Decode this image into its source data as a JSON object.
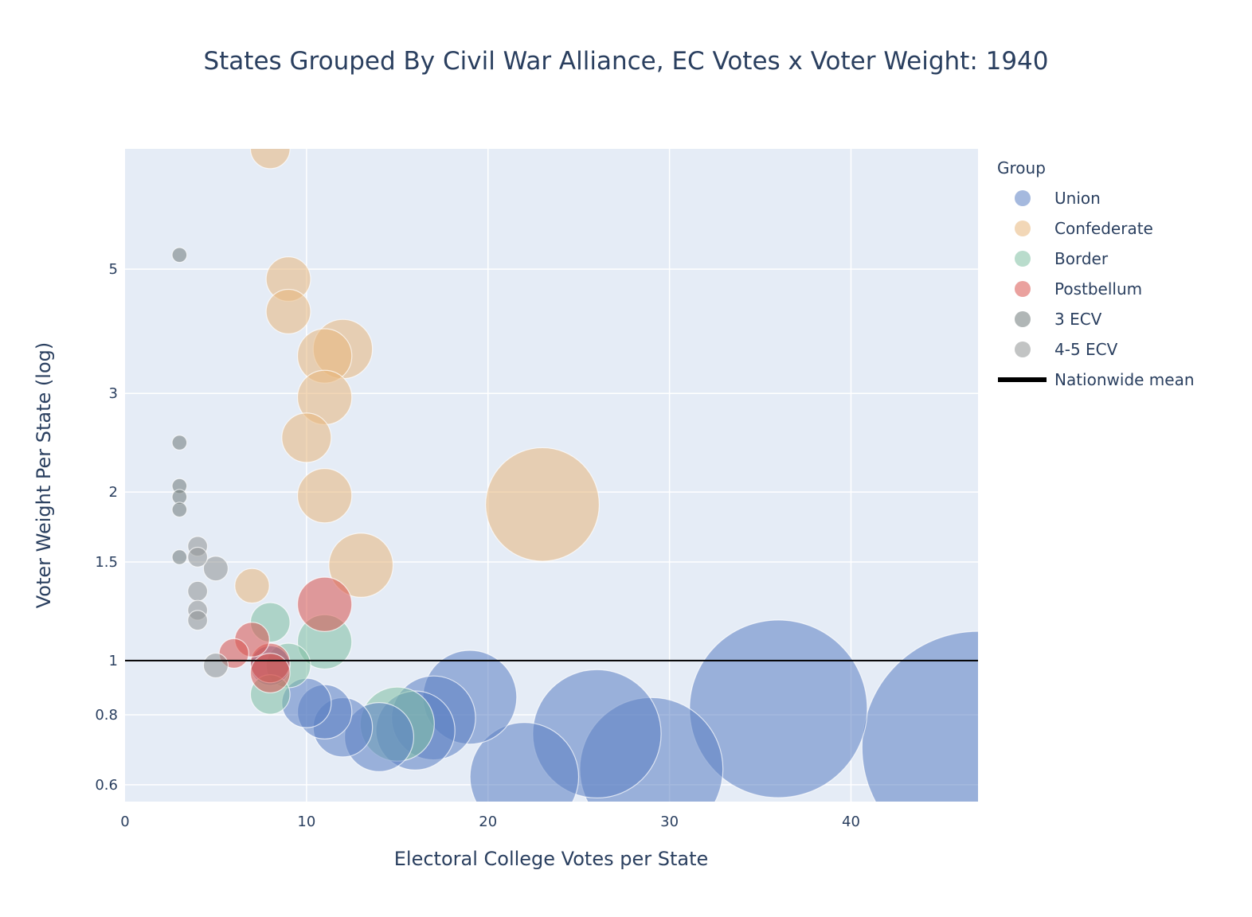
{
  "chart_data": {
    "type": "scatter",
    "title": "States Grouped By Civil War Alliance, EC Votes x Voter Weight: 1940",
    "xlabel": "Electoral College Votes per State",
    "ylabel": "Voter Weight Per State (log)",
    "xlim": [
      0,
      47
    ],
    "ylim": [
      0.56,
      8.2
    ],
    "y_scale": "log",
    "grid": true,
    "x_ticks": [
      0,
      10,
      20,
      30,
      40
    ],
    "x_tick_labels": [
      "0",
      "10",
      "20",
      "30",
      "40"
    ],
    "y_ticks": [
      0.6,
      0.8,
      1,
      1.5,
      2,
      3,
      5
    ],
    "y_tick_labels": [
      "0.6",
      "0.8",
      "1",
      "1.5",
      "2",
      "3",
      "5"
    ],
    "legend": {
      "title": "Group",
      "placement": "right",
      "entries": [
        "Union",
        "Confederate",
        "Border",
        "Postbellum",
        "3 ECV",
        "4-5 ECV",
        "Nationwide mean"
      ]
    },
    "reference_line": {
      "name": "Nationwide mean",
      "y": 1,
      "color": "#000000"
    },
    "series": [
      {
        "name": "Union",
        "color": "#5b7fc2",
        "points": [
          {
            "x": 47,
            "y": 0.7
          },
          {
            "x": 36,
            "y": 0.82
          },
          {
            "x": 29,
            "y": 0.64
          },
          {
            "x": 26,
            "y": 0.74
          },
          {
            "x": 22,
            "y": 0.62
          },
          {
            "x": 19,
            "y": 0.86
          },
          {
            "x": 17,
            "y": 0.79
          },
          {
            "x": 16,
            "y": 0.75
          },
          {
            "x": 14,
            "y": 0.73
          },
          {
            "x": 12,
            "y": 0.76
          },
          {
            "x": 11,
            "y": 0.81
          },
          {
            "x": 10,
            "y": 0.84
          },
          {
            "x": 8,
            "y": 0.98
          }
        ]
      },
      {
        "name": "Confederate",
        "color": "#e8b77b",
        "points": [
          {
            "x": 8,
            "y": 8.2
          },
          {
            "x": 9,
            "y": 4.8
          },
          {
            "x": 9,
            "y": 4.2
          },
          {
            "x": 12,
            "y": 3.6
          },
          {
            "x": 11,
            "y": 3.5
          },
          {
            "x": 11,
            "y": 2.95
          },
          {
            "x": 10,
            "y": 2.5
          },
          {
            "x": 11,
            "y": 1.97
          },
          {
            "x": 23,
            "y": 1.9
          },
          {
            "x": 13,
            "y": 1.48
          },
          {
            "x": 7,
            "y": 1.36
          }
        ]
      },
      {
        "name": "Border",
        "color": "#7fbfa2",
        "points": [
          {
            "x": 15,
            "y": 0.77
          },
          {
            "x": 11,
            "y": 1.08
          },
          {
            "x": 8,
            "y": 1.17
          },
          {
            "x": 9,
            "y": 0.98
          },
          {
            "x": 8,
            "y": 0.87
          }
        ]
      },
      {
        "name": "Postbellum",
        "color": "#d9534f",
        "points": [
          {
            "x": 11,
            "y": 1.26
          },
          {
            "x": 7,
            "y": 1.09
          },
          {
            "x": 6,
            "y": 1.03
          },
          {
            "x": 8,
            "y": 0.99
          },
          {
            "x": 8,
            "y": 0.95
          }
        ]
      },
      {
        "name": "3 ECV",
        "color": "#6f7a7a",
        "points": [
          {
            "x": 3,
            "y": 5.3
          },
          {
            "x": 3,
            "y": 2.45
          },
          {
            "x": 3,
            "y": 2.05
          },
          {
            "x": 3,
            "y": 1.96
          },
          {
            "x": 3,
            "y": 1.86
          },
          {
            "x": 3,
            "y": 1.53
          }
        ]
      },
      {
        "name": "4-5 ECV",
        "color": "#8f9393",
        "points": [
          {
            "x": 4,
            "y": 1.6
          },
          {
            "x": 4,
            "y": 1.53
          },
          {
            "x": 5,
            "y": 1.46
          },
          {
            "x": 4,
            "y": 1.33
          },
          {
            "x": 4,
            "y": 1.23
          },
          {
            "x": 4,
            "y": 1.18
          },
          {
            "x": 5,
            "y": 0.98
          }
        ]
      }
    ]
  }
}
